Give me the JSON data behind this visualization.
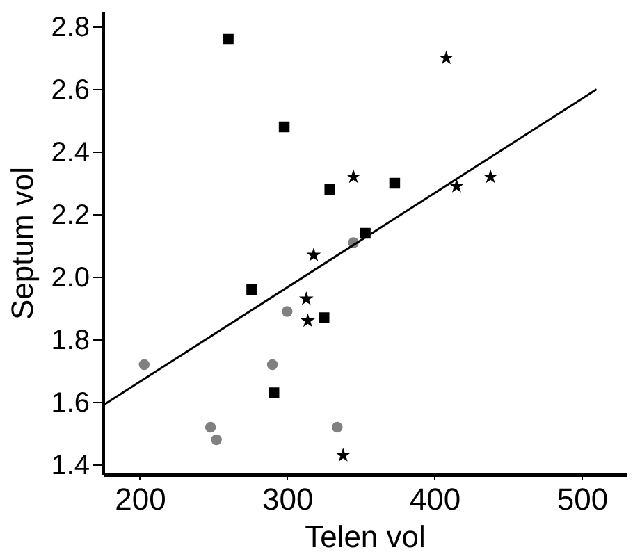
{
  "chart_data": {
    "type": "scatter",
    "xlabel": "Telen vol",
    "ylabel": "Septum vol",
    "xlim": [
      175,
      530
    ],
    "ylim": [
      1.37,
      2.85
    ],
    "xticks": [
      200,
      300,
      400,
      500
    ],
    "yticks": [
      1.4,
      1.6,
      1.8,
      {
        "value": 2,
        "label": "2.0"
      },
      2.2,
      2.4,
      2.6,
      2.8
    ],
    "grid": false,
    "series": [
      {
        "color": "#000000",
        "marker": "square",
        "x": [
          260,
          298,
          329,
          373,
          353,
          276,
          325,
          291
        ],
        "values": [
          2.76,
          2.48,
          2.28,
          2.3,
          2.14,
          1.96,
          1.87,
          1.63
        ]
      },
      {
        "color": "#808080",
        "marker": "circle",
        "x": [
          203,
          248,
          252,
          290,
          300,
          334,
          345
        ],
        "values": [
          1.72,
          1.52,
          1.48,
          1.72,
          1.89,
          1.52,
          2.11
        ]
      },
      {
        "color": "#000000",
        "marker": "star",
        "x": [
          408,
          345,
          415,
          438,
          318,
          313,
          314,
          338
        ],
        "values": [
          2.7,
          2.32,
          2.29,
          2.32,
          2.07,
          1.93,
          1.86,
          1.43
        ]
      },
      {
        "type": "line",
        "color": "#000000",
        "marker": "none",
        "x": [
          175,
          510
        ],
        "values": [
          1.59,
          2.6
        ]
      }
    ]
  }
}
